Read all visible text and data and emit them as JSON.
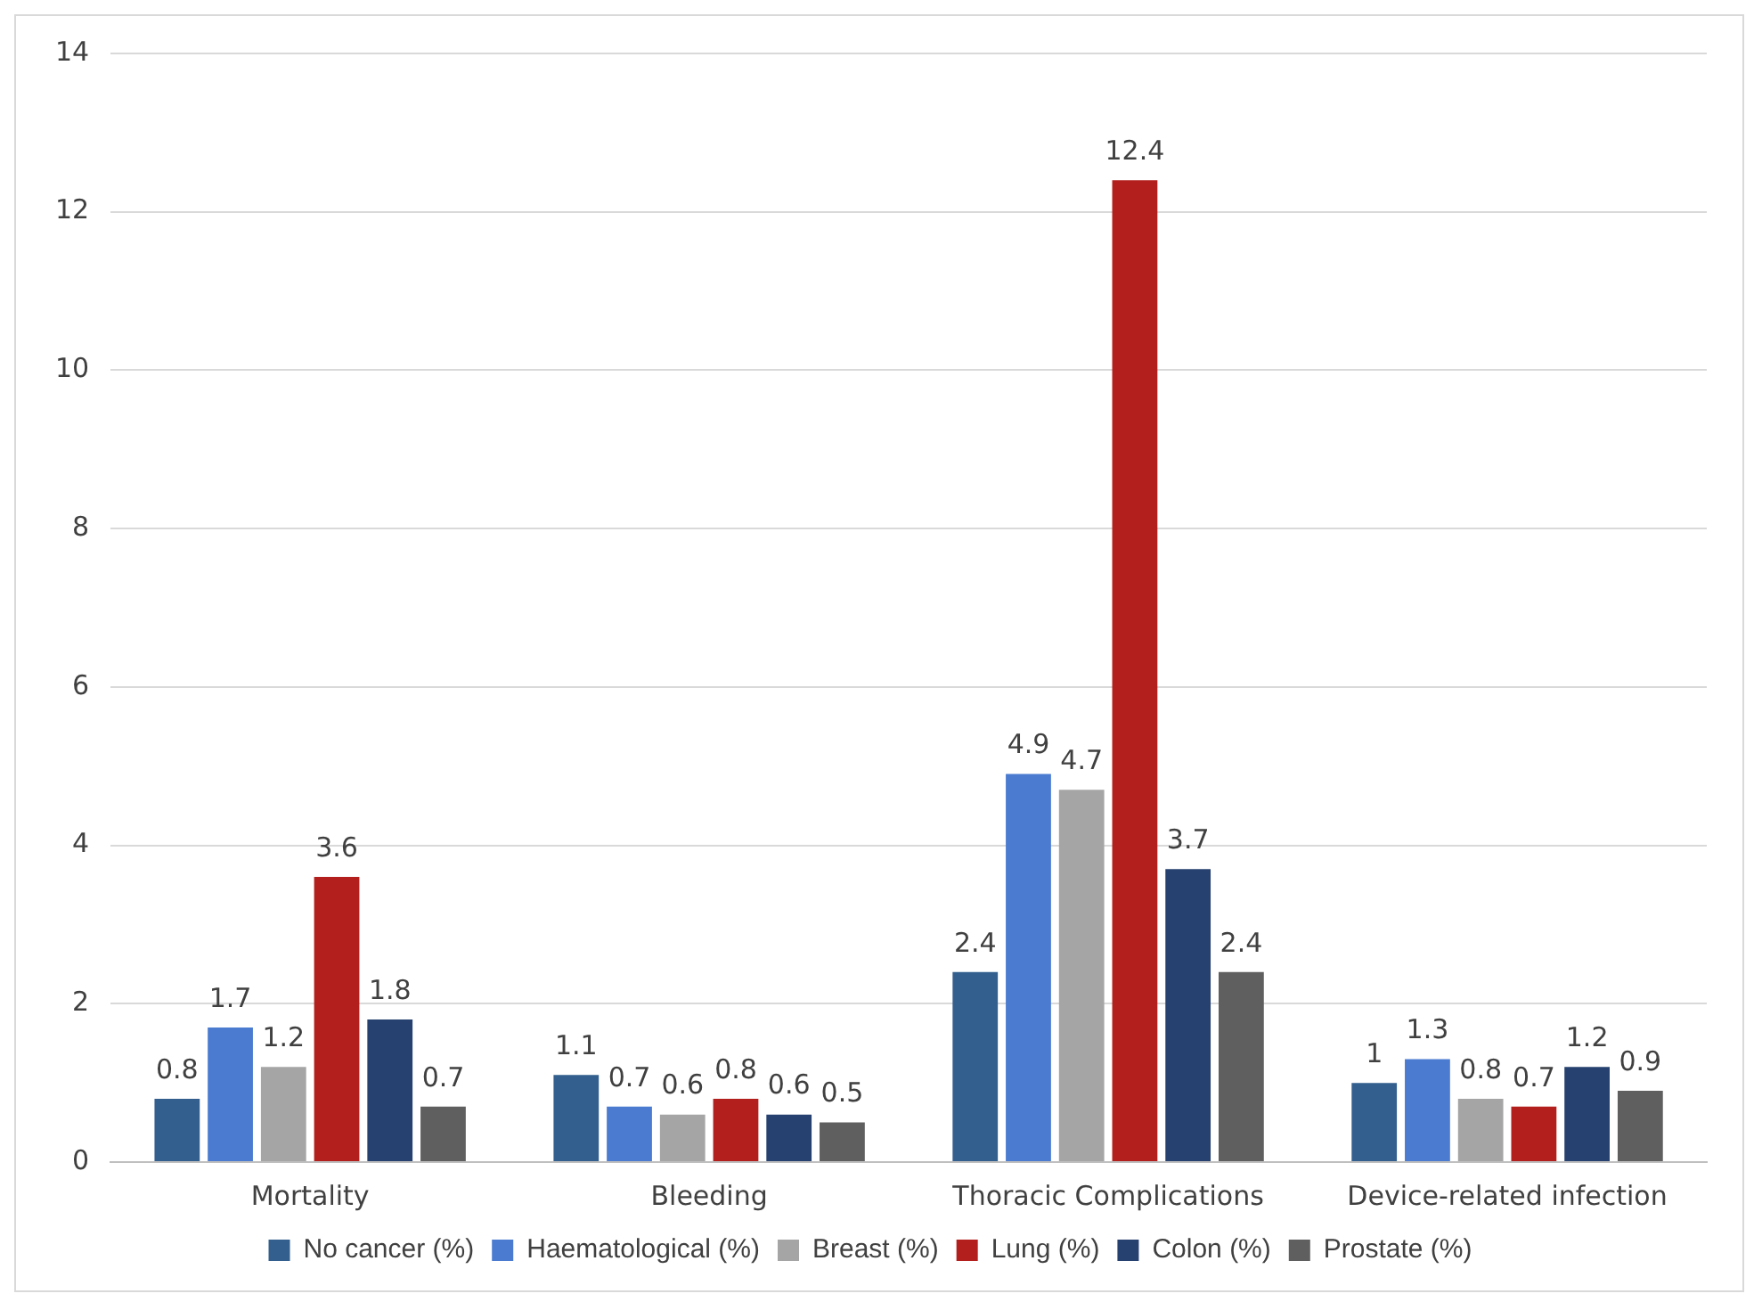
{
  "chart_data": {
    "type": "bar",
    "categories": [
      "Mortality",
      "Bleeding",
      "Thoracic Complications",
      "Device-related infection"
    ],
    "series": [
      {
        "name": "No cancer (%)",
        "color": "#335f8f",
        "values": [
          0.8,
          1.1,
          2.4,
          1
        ]
      },
      {
        "name": "Haematological (%)",
        "color": "#4a7bd0",
        "values": [
          1.7,
          0.7,
          4.9,
          1.3
        ]
      },
      {
        "name": "Breast (%)",
        "color": "#a5a5a5",
        "values": [
          1.2,
          0.6,
          4.7,
          0.8
        ]
      },
      {
        "name": "Lung (%)",
        "color": "#b21f1c",
        "values": [
          3.6,
          0.8,
          12.4,
          0.7
        ]
      },
      {
        "name": "Colon (%)",
        "color": "#26416f",
        "values": [
          1.8,
          0.6,
          3.7,
          1.2
        ]
      },
      {
        "name": "Prostate (%)",
        "color": "#5f5f5f",
        "values": [
          0.7,
          0.5,
          2.4,
          0.9
        ]
      }
    ],
    "ylim": [
      0,
      14
    ],
    "yticks": [
      0,
      2,
      4,
      6,
      8,
      10,
      12,
      14
    ],
    "grid": "y",
    "legend": "bottom",
    "data_labels": true
  }
}
